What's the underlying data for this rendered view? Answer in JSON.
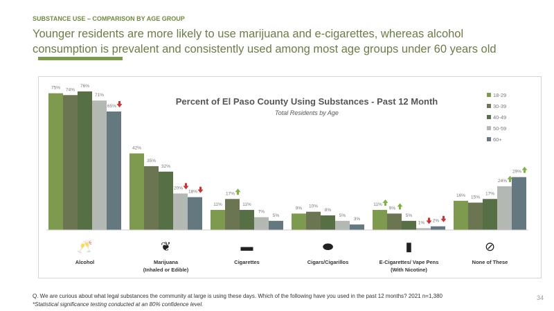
{
  "kicker": "SUBSTANCE USE – COMPARISON BY AGE GROUP",
  "headline": "Younger residents are more likely to use marijuana and e-cigarettes, whereas alcohol consumption is prevalent and consistently used among most age groups under 60 years old",
  "footnote": "Q. We are curious about what legal substances the community at large is using these days. Which of the following have you used in the past 12 months? 2021 n=1,380",
  "footnote2": "*Statistical significance testing conducted at an 80% confidence level.",
  "page_number": "34",
  "chart_data": {
    "type": "bar",
    "title": "Percent of El Paso County Using Substances - Past 12 Month",
    "subtitle": "Total Residents by Age",
    "categories": [
      "Alcohol",
      "Marijuana (Inhaled or Edible)",
      "Cigarettes",
      "Cigars/Cigarillos",
      "E-Cigarettes/ Vape Pens (With Nicotine)",
      "None of These"
    ],
    "category_lines": [
      [
        "Alcohol"
      ],
      [
        "Marijuana",
        "(Inhaled or Edible)"
      ],
      [
        "Cigarettes"
      ],
      [
        "Cigars/Cigarillos"
      ],
      [
        "E-Cigarettes/ Vape Pens",
        "(With Nicotine)"
      ],
      [
        "None of These"
      ]
    ],
    "category_icons": [
      "wine-glasses-icon",
      "cannabis-leaf-icon",
      "cigarette-icon",
      "cigar-icon",
      "vape-pen-icon",
      "prohibited-icon"
    ],
    "ylim": [
      0,
      80
    ],
    "legend": "top-right",
    "grid": false,
    "series": [
      {
        "name": "18-29",
        "color": "#7d9a4e",
        "values": [
          75,
          42,
          11,
          9,
          11,
          16
        ],
        "flags": [
          "",
          "",
          "",
          "",
          "up",
          ""
        ]
      },
      {
        "name": "30-39",
        "color": "#6b7552",
        "values": [
          74,
          35,
          17,
          10,
          9,
          15
        ],
        "flags": [
          "",
          "",
          "up",
          "",
          "up",
          ""
        ]
      },
      {
        "name": "40-49",
        "color": "#566f45",
        "values": [
          76,
          32,
          11,
          8,
          5,
          17
        ],
        "flags": [
          "",
          "",
          "",
          "",
          "",
          ""
        ]
      },
      {
        "name": "50-59",
        "color": "#b3b8b3",
        "values": [
          71,
          20,
          7,
          5,
          1,
          24
        ],
        "flags": [
          "",
          "down",
          "",
          "",
          "down",
          "up"
        ]
      },
      {
        "name": "60+",
        "color": "#647880",
        "values": [
          65,
          18,
          5,
          3,
          2,
          29
        ],
        "flags": [
          "down",
          "down",
          "",
          "",
          "down",
          "up"
        ]
      }
    ],
    "flag_colors": {
      "up": "#7cb342",
      "down": "#d32f2f"
    }
  }
}
